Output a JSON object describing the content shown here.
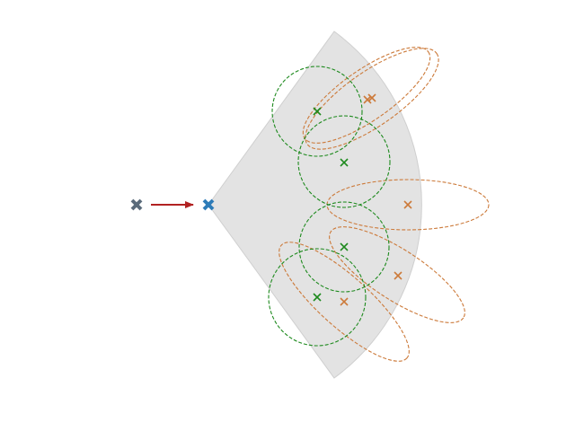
{
  "colors": {
    "background": "#ffffff",
    "sensor_fov_fill": "#e3e3e3",
    "sensor_fov_edge": "#cfcfcf",
    "previous_pose": "#5a6b7b",
    "current_pose": "#2e7cb8",
    "motion_arrow": "#b22222",
    "green_marker": "#1e8a1e",
    "green_ellipse": "#1e8a1e",
    "orange_marker": "#cc7a3a",
    "orange_ellipse": "#cc7a3a"
  },
  "icons": {
    "previous_pose": "x-mark-icon",
    "current_pose": "x-mark-icon",
    "landmark": "x-mark-icon"
  },
  "green_landmark_count": 4,
  "orange_landmark_count": 5
}
